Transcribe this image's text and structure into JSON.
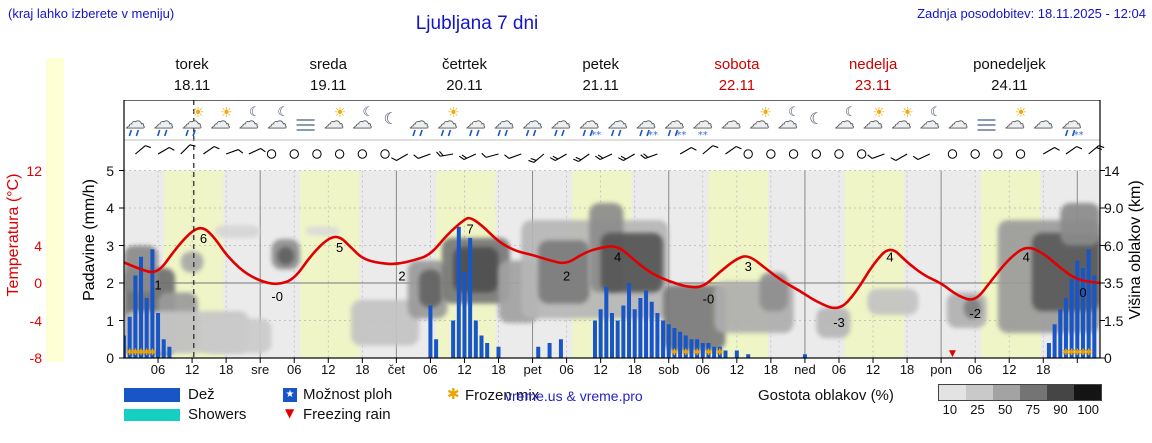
{
  "header": {
    "menu_note": "(kraj lahko izberete v meniju)",
    "title": "Ljubljana 7 dni",
    "last_update": "Zadnja posodobitev: 18.11.2025 - 12:04"
  },
  "days": [
    {
      "name": "torek",
      "date": "18.11",
      "weekend": false
    },
    {
      "name": "sreda",
      "date": "19.11",
      "weekend": false
    },
    {
      "name": "četrtek",
      "date": "20.11",
      "weekend": false
    },
    {
      "name": "petek",
      "date": "21.11",
      "weekend": false
    },
    {
      "name": "sobota",
      "date": "22.11",
      "weekend": true
    },
    {
      "name": "nedelja",
      "date": "23.11",
      "weekend": true
    },
    {
      "name": "ponedeljek",
      "date": "24.11",
      "weekend": false
    }
  ],
  "axes": {
    "temperature": {
      "label": "Temperatura (°C)",
      "ticks": [
        {
          "v": "12",
          "row": 0
        },
        {
          "v": "4",
          "row": 2
        },
        {
          "v": "0",
          "row": 3
        },
        {
          "v": "-4",
          "row": 4
        },
        {
          "v": "-8",
          "row": 5
        }
      ]
    },
    "precip": {
      "label": "Padavine (mm/h)",
      "ticks": [
        "5",
        "4",
        "3",
        "2",
        "1",
        "0"
      ]
    },
    "cloud_height": {
      "label": "Višina oblakov (km)",
      "ticks": [
        "14",
        "9.0",
        "6.0",
        "3.5",
        "1.5",
        "0"
      ]
    },
    "x_ticks": [
      {
        "h": 6,
        "t": "06"
      },
      {
        "h": 12,
        "t": "12"
      },
      {
        "h": 18,
        "t": "18"
      },
      {
        "h": 24,
        "t": "sre"
      },
      {
        "h": 30,
        "t": "06"
      },
      {
        "h": 36,
        "t": "12"
      },
      {
        "h": 42,
        "t": "18"
      },
      {
        "h": 48,
        "t": "čet"
      },
      {
        "h": 54,
        "t": "06"
      },
      {
        "h": 60,
        "t": "12"
      },
      {
        "h": 66,
        "t": "18"
      },
      {
        "h": 72,
        "t": "pet"
      },
      {
        "h": 78,
        "t": "06"
      },
      {
        "h": 84,
        "t": "12"
      },
      {
        "h": 90,
        "t": "18"
      },
      {
        "h": 96,
        "t": "sob"
      },
      {
        "h": 102,
        "t": "06"
      },
      {
        "h": 108,
        "t": "12"
      },
      {
        "h": 114,
        "t": "18"
      },
      {
        "h": 120,
        "t": "ned"
      },
      {
        "h": 126,
        "t": "06"
      },
      {
        "h": 132,
        "t": "12"
      },
      {
        "h": 138,
        "t": "18"
      },
      {
        "h": 144,
        "t": "pon"
      },
      {
        "h": 150,
        "t": "06"
      },
      {
        "h": 156,
        "t": "12"
      },
      {
        "h": 162,
        "t": "18"
      }
    ]
  },
  "chart_data": {
    "type": "meteogram",
    "title": "Ljubljana 7 dni",
    "x_unit": "hours from 18.11 00:00",
    "hours_total": 172,
    "now_hour": 12.3,
    "day_band_hours": [
      7,
      17.5
    ],
    "temperature_c": [
      [
        0,
        2.2
      ],
      [
        3,
        1.4
      ],
      [
        6,
        1.0
      ],
      [
        9,
        3.6
      ],
      [
        12,
        5.6
      ],
      [
        14,
        6.0
      ],
      [
        16,
        4.8
      ],
      [
        18,
        3.0
      ],
      [
        21,
        1.2
      ],
      [
        24,
        0.2
      ],
      [
        27,
        -0.2
      ],
      [
        30,
        0.4
      ],
      [
        33,
        3.0
      ],
      [
        36,
        4.8
      ],
      [
        38,
        5.0
      ],
      [
        40,
        3.8
      ],
      [
        42,
        2.6
      ],
      [
        45,
        2.1
      ],
      [
        48,
        2.0
      ],
      [
        51,
        2.4
      ],
      [
        54,
        3.0
      ],
      [
        57,
        5.2
      ],
      [
        60,
        6.8
      ],
      [
        61,
        7.0
      ],
      [
        63,
        6.2
      ],
      [
        66,
        4.4
      ],
      [
        69,
        3.4
      ],
      [
        72,
        3.0
      ],
      [
        75,
        2.4
      ],
      [
        78,
        2.0
      ],
      [
        81,
        3.2
      ],
      [
        84,
        3.8
      ],
      [
        87,
        4.0
      ],
      [
        90,
        2.4
      ],
      [
        93,
        1.0
      ],
      [
        96,
        0.2
      ],
      [
        99,
        -0.4
      ],
      [
        102,
        -0.5
      ],
      [
        105,
        1.2
      ],
      [
        108,
        2.6
      ],
      [
        110,
        3.0
      ],
      [
        113,
        1.6
      ],
      [
        116,
        0.2
      ],
      [
        119,
        -0.8
      ],
      [
        122,
        -2.0
      ],
      [
        126,
        -3.0
      ],
      [
        129,
        -1.0
      ],
      [
        132,
        2.0
      ],
      [
        135,
        4.0
      ],
      [
        138,
        2.2
      ],
      [
        141,
        0.8
      ],
      [
        144,
        0.0
      ],
      [
        147,
        -1.4
      ],
      [
        150,
        -2.0
      ],
      [
        153,
        0.4
      ],
      [
        156,
        2.6
      ],
      [
        159,
        4.0
      ],
      [
        162,
        3.2
      ],
      [
        165,
        1.6
      ],
      [
        168,
        0.3
      ],
      [
        172,
        0.0
      ]
    ],
    "temperature_labels": [
      [
        6,
        1,
        "1"
      ],
      [
        14,
        6,
        "6"
      ],
      [
        27,
        -0.2,
        "-0"
      ],
      [
        38,
        5,
        "5"
      ],
      [
        49,
        2,
        "2"
      ],
      [
        61,
        7,
        "7"
      ],
      [
        78,
        2,
        "2"
      ],
      [
        87,
        4,
        "4"
      ],
      [
        103,
        -0.5,
        "-0"
      ],
      [
        110,
        3,
        "3"
      ],
      [
        126,
        -3,
        "-3"
      ],
      [
        135,
        4,
        "4"
      ],
      [
        150,
        -2,
        "-2"
      ],
      [
        159,
        4,
        "4"
      ],
      [
        169,
        0.2,
        "0"
      ]
    ],
    "precip_mm_h": [
      [
        0,
        0.6
      ],
      [
        1,
        1.1
      ],
      [
        2,
        2.2
      ],
      [
        3,
        2.7
      ],
      [
        4,
        1.6
      ],
      [
        5,
        2.9
      ],
      [
        6,
        1.2
      ],
      [
        7,
        0.5
      ],
      [
        8,
        0.3
      ],
      [
        54,
        1.4
      ],
      [
        55,
        0.5
      ],
      [
        58,
        1.0
      ],
      [
        59,
        3.5
      ],
      [
        60,
        2.3
      ],
      [
        61,
        3.2
      ],
      [
        62,
        1.0
      ],
      [
        63,
        0.6
      ],
      [
        64,
        0.4
      ],
      [
        66,
        0.3
      ],
      [
        73,
        0.3
      ],
      [
        75,
        0.4
      ],
      [
        77,
        0.5
      ],
      [
        83,
        1.0
      ],
      [
        84,
        1.3
      ],
      [
        85,
        1.9
      ],
      [
        86,
        1.2
      ],
      [
        87,
        1.0
      ],
      [
        88,
        1.4
      ],
      [
        89,
        2.0
      ],
      [
        90,
        1.3
      ],
      [
        91,
        1.6
      ],
      [
        92,
        1.8
      ],
      [
        93,
        1.5
      ],
      [
        94,
        1.2
      ],
      [
        95,
        1.0
      ],
      [
        96,
        0.9
      ],
      [
        97,
        0.8
      ],
      [
        98,
        0.7
      ],
      [
        99,
        0.6
      ],
      [
        100,
        0.5
      ],
      [
        101,
        0.5
      ],
      [
        102,
        0.4
      ],
      [
        103,
        0.4
      ],
      [
        104,
        0.3
      ],
      [
        105,
        0.3
      ],
      [
        106,
        0.2
      ],
      [
        108,
        0.2
      ],
      [
        110,
        0.1
      ],
      [
        120,
        0.1
      ],
      [
        163,
        0.4
      ],
      [
        164,
        0.9
      ],
      [
        165,
        1.3
      ],
      [
        166,
        1.6
      ],
      [
        167,
        2.1
      ],
      [
        168,
        2.6
      ],
      [
        169,
        2.4
      ],
      [
        170,
        2.9
      ],
      [
        171,
        2.2
      ]
    ],
    "frozen_mix_hours": [
      1,
      2,
      3,
      4,
      5,
      97,
      99,
      101,
      103,
      105,
      166,
      167,
      168,
      169,
      170
    ],
    "freezing_rain_hours": [
      146
    ],
    "cloud_blobs": [
      [
        0,
        9,
        4.5,
        0.1,
        "#6e6e6e"
      ],
      [
        0,
        6,
        6,
        3,
        "#8a8a8a"
      ],
      [
        6,
        13,
        3,
        0.3,
        "#9b9b9b"
      ],
      [
        0,
        22,
        2,
        0.2,
        "#c6c6c6"
      ],
      [
        10,
        14,
        5.6,
        4.2,
        "#a8a8a8"
      ],
      [
        16,
        24,
        7.6,
        6.6,
        "#d6d6d6"
      ],
      [
        14,
        26,
        1.6,
        0.2,
        "#cbcbcb"
      ],
      [
        26,
        31,
        6.5,
        4.4,
        "#8f8f8f"
      ],
      [
        27,
        30,
        5.9,
        4.7,
        "#606060"
      ],
      [
        32,
        38,
        7.5,
        6.8,
        "#dadada"
      ],
      [
        40,
        52,
        2.6,
        0.5,
        "#c3c3c3"
      ],
      [
        50,
        57,
        5,
        1.6,
        "#9a9a9a"
      ],
      [
        52,
        56,
        4.4,
        2.2,
        "#646464"
      ],
      [
        56,
        68,
        6.6,
        2.4,
        "#787878"
      ],
      [
        58,
        66,
        5.9,
        3,
        "#505050"
      ],
      [
        66,
        73,
        5,
        1.4,
        "#a2a2a2"
      ],
      [
        70,
        96,
        8,
        1.6,
        "#b6b6b6"
      ],
      [
        73,
        82,
        6.4,
        2.4,
        "#7c7c7c"
      ],
      [
        82,
        88,
        9.6,
        3,
        "#8c8c8c"
      ],
      [
        84,
        95,
        7,
        3,
        "#565656"
      ],
      [
        95,
        106,
        3.4,
        0.3,
        "#7a7a7a"
      ],
      [
        104,
        118,
        3.6,
        1,
        "#aeaeae"
      ],
      [
        112,
        117,
        4.2,
        2,
        "#8f8f8f"
      ],
      [
        122,
        128,
        2.2,
        0.8,
        "#b6b6b6"
      ],
      [
        131,
        140,
        3.2,
        1.8,
        "#c3c3c3"
      ],
      [
        145,
        152,
        3,
        1.2,
        "#b1b1b1"
      ],
      [
        148,
        151,
        2.7,
        1.6,
        "#7e7e7e"
      ],
      [
        154,
        172,
        8,
        1,
        "#9b9b9b"
      ],
      [
        160,
        172,
        7,
        2,
        "#5a5a5a"
      ],
      [
        165,
        172,
        9.6,
        6,
        "#8b8b8b"
      ]
    ],
    "weather_icons": [
      [
        2,
        "rain"
      ],
      [
        7,
        "rain"
      ],
      [
        12,
        "rain-sun"
      ],
      [
        17,
        "sun-cloud"
      ],
      [
        22,
        "moon-cloud"
      ],
      [
        27,
        "moon-cloud"
      ],
      [
        32,
        "fog"
      ],
      [
        37,
        "sun-cloud"
      ],
      [
        42,
        "moon-cloud"
      ],
      [
        47,
        "moon"
      ],
      [
        52,
        "rain"
      ],
      [
        57,
        "rain-sun"
      ],
      [
        62,
        "rain"
      ],
      [
        67,
        "rain"
      ],
      [
        72,
        "rain"
      ],
      [
        77,
        "rain"
      ],
      [
        82,
        "rain-snow"
      ],
      [
        87,
        "rain"
      ],
      [
        92,
        "rain-snow"
      ],
      [
        97,
        "rain-snow"
      ],
      [
        102,
        "snow"
      ],
      [
        107,
        "cloud"
      ],
      [
        112,
        "sun-cloud"
      ],
      [
        117,
        "moon-cloud"
      ],
      [
        122,
        "moon"
      ],
      [
        127,
        "moon-cloud"
      ],
      [
        132,
        "sun-cloud"
      ],
      [
        137,
        "sun-cloud"
      ],
      [
        142,
        "moon-cloud"
      ],
      [
        147,
        "cloud"
      ],
      [
        152,
        "fog"
      ],
      [
        157,
        "sun-cloud"
      ],
      [
        162,
        "cloud"
      ],
      [
        167,
        "rain-snow"
      ]
    ],
    "wind_barbs": [
      [
        2,
        "b",
        50,
        10
      ],
      [
        6,
        "b",
        60,
        10
      ],
      [
        10,
        "b",
        45,
        10
      ],
      [
        14,
        "b",
        55,
        10
      ],
      [
        18,
        "b",
        70,
        5
      ],
      [
        22,
        "b",
        65,
        5
      ],
      [
        26,
        "c"
      ],
      [
        30,
        "c"
      ],
      [
        34,
        "c"
      ],
      [
        38,
        "c"
      ],
      [
        42,
        "c"
      ],
      [
        46,
        "c"
      ],
      [
        50,
        "b",
        240,
        10
      ],
      [
        54,
        "b",
        250,
        10
      ],
      [
        58,
        "b",
        260,
        15
      ],
      [
        62,
        "b",
        245,
        15
      ],
      [
        66,
        "b",
        255,
        10
      ],
      [
        70,
        "b",
        250,
        10
      ],
      [
        74,
        "b",
        230,
        15
      ],
      [
        78,
        "b",
        240,
        15
      ],
      [
        82,
        "b",
        235,
        20
      ],
      [
        86,
        "b",
        245,
        20
      ],
      [
        90,
        "b",
        240,
        15
      ],
      [
        94,
        "b",
        250,
        15
      ],
      [
        98,
        "b",
        60,
        10
      ],
      [
        102,
        "b",
        50,
        10
      ],
      [
        106,
        "b",
        55,
        10
      ],
      [
        110,
        "c"
      ],
      [
        114,
        "c"
      ],
      [
        118,
        "c"
      ],
      [
        122,
        "c"
      ],
      [
        126,
        "c"
      ],
      [
        130,
        "c"
      ],
      [
        134,
        "b",
        250,
        10
      ],
      [
        138,
        "b",
        240,
        10
      ],
      [
        142,
        "b",
        245,
        10
      ],
      [
        146,
        "c"
      ],
      [
        150,
        "c"
      ],
      [
        154,
        "c"
      ],
      [
        158,
        "c"
      ],
      [
        162,
        "b",
        60,
        10
      ],
      [
        166,
        "b",
        55,
        10
      ],
      [
        170,
        "b",
        50,
        15
      ]
    ]
  },
  "legend": {
    "rain_label": "Dež",
    "showers_label": "Showers",
    "moznost_label": "Možnost ploh",
    "freezing_label": "Freezing rain",
    "frozen_label": "Frozen mix",
    "cloud_density_label": "Gostota oblakov (%)",
    "cloud_density_ticks": [
      "10",
      "25",
      "50",
      "75",
      "90",
      "100"
    ],
    "watermark": "vreme.us & vreme.pro",
    "icons": {
      "possible_showers_star": "★",
      "freezing_rain_triangle": "▼",
      "frozen_mix_asterisk": "✱"
    }
  },
  "colors": {
    "rain": "#1856c8",
    "showers": "#16cfc3",
    "temp_line": "#e10000",
    "frozen_mix": "#eda400",
    "freezing_rain": "#e10000",
    "day_band": "#eff5c6",
    "plot_bg": "#ebebeb",
    "weekend": "#cc0000",
    "header_blue": "#1414cc",
    "cloud_scale": [
      "#e3e3e3",
      "#c9c9c9",
      "#a3a3a3",
      "#747474",
      "#454545",
      "#141414"
    ]
  }
}
